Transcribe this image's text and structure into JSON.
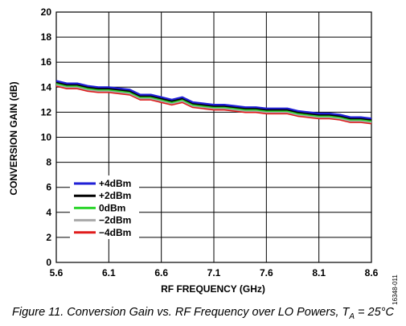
{
  "chart_data": {
    "type": "line",
    "xlabel": "RF FREQUENCY (GHz)",
    "ylabel": "CONVERSION GAIN (dB)",
    "xlim": [
      5.6,
      8.6
    ],
    "ylim": [
      0,
      20
    ],
    "xticks": [
      "5.6",
      "6.1",
      "6.6",
      "7.1",
      "7.6",
      "8.1",
      "8.6"
    ],
    "yticks": [
      "0",
      "2",
      "4",
      "6",
      "8",
      "10",
      "12",
      "14",
      "16",
      "18",
      "20"
    ],
    "grid": true,
    "legend_position": "lower-left",
    "x": [
      5.6,
      5.7,
      5.8,
      5.9,
      6.0,
      6.1,
      6.2,
      6.3,
      6.4,
      6.5,
      6.6,
      6.7,
      6.8,
      6.9,
      7.0,
      7.1,
      7.2,
      7.3,
      7.4,
      7.5,
      7.6,
      7.7,
      7.8,
      7.9,
      8.0,
      8.1,
      8.2,
      8.3,
      8.4,
      8.5,
      8.6
    ],
    "series": [
      {
        "name": "+4dBm",
        "color": "#1f1fd6",
        "values": [
          14.5,
          14.3,
          14.3,
          14.1,
          14.0,
          14.0,
          13.9,
          13.8,
          13.4,
          13.4,
          13.2,
          13.0,
          13.2,
          12.8,
          12.7,
          12.6,
          12.6,
          12.5,
          12.4,
          12.4,
          12.3,
          12.3,
          12.3,
          12.1,
          12.0,
          11.9,
          11.9,
          11.8,
          11.6,
          11.6,
          11.5
        ]
      },
      {
        "name": "+2dBm",
        "color": "#000000",
        "values": [
          14.4,
          14.2,
          14.2,
          14.0,
          13.9,
          13.9,
          13.8,
          13.7,
          13.3,
          13.3,
          13.1,
          12.9,
          13.1,
          12.7,
          12.6,
          12.5,
          12.5,
          12.4,
          12.3,
          12.3,
          12.2,
          12.2,
          12.2,
          12.0,
          11.9,
          11.8,
          11.8,
          11.7,
          11.5,
          11.5,
          11.4
        ]
      },
      {
        "name": "0dBm",
        "color": "#2bd52b",
        "values": [
          14.3,
          14.1,
          14.1,
          13.9,
          13.8,
          13.8,
          13.7,
          13.6,
          13.2,
          13.2,
          13.0,
          12.8,
          13.0,
          12.6,
          12.5,
          12.4,
          12.4,
          12.3,
          12.2,
          12.2,
          12.1,
          12.1,
          12.1,
          11.9,
          11.8,
          11.7,
          11.7,
          11.6,
          11.4,
          11.4,
          11.3
        ]
      },
      {
        "name": "−2dBm",
        "color": "#aaaaaa",
        "values": [
          14.2,
          14.0,
          14.0,
          13.8,
          13.7,
          13.7,
          13.6,
          13.5,
          13.1,
          13.1,
          12.9,
          12.7,
          12.9,
          12.5,
          12.4,
          12.3,
          12.3,
          12.2,
          12.1,
          12.1,
          12.0,
          12.0,
          12.0,
          11.8,
          11.7,
          11.6,
          11.6,
          11.5,
          11.3,
          11.3,
          11.2
        ]
      },
      {
        "name": "−4dBm",
        "color": "#e01b1b",
        "values": [
          14.1,
          13.9,
          13.9,
          13.7,
          13.6,
          13.6,
          13.5,
          13.4,
          13.0,
          13.0,
          12.8,
          12.6,
          12.8,
          12.4,
          12.3,
          12.2,
          12.2,
          12.1,
          12.0,
          12.0,
          11.9,
          11.9,
          11.9,
          11.7,
          11.6,
          11.5,
          11.5,
          11.4,
          11.2,
          11.2,
          11.1
        ]
      }
    ]
  },
  "caption": {
    "lead": "Figure 11. Conversion Gain vs. RF Frequency over LO Powers, T",
    "subscript": "A",
    "tail": " = 25°C"
  },
  "figure_code": "16348-011"
}
